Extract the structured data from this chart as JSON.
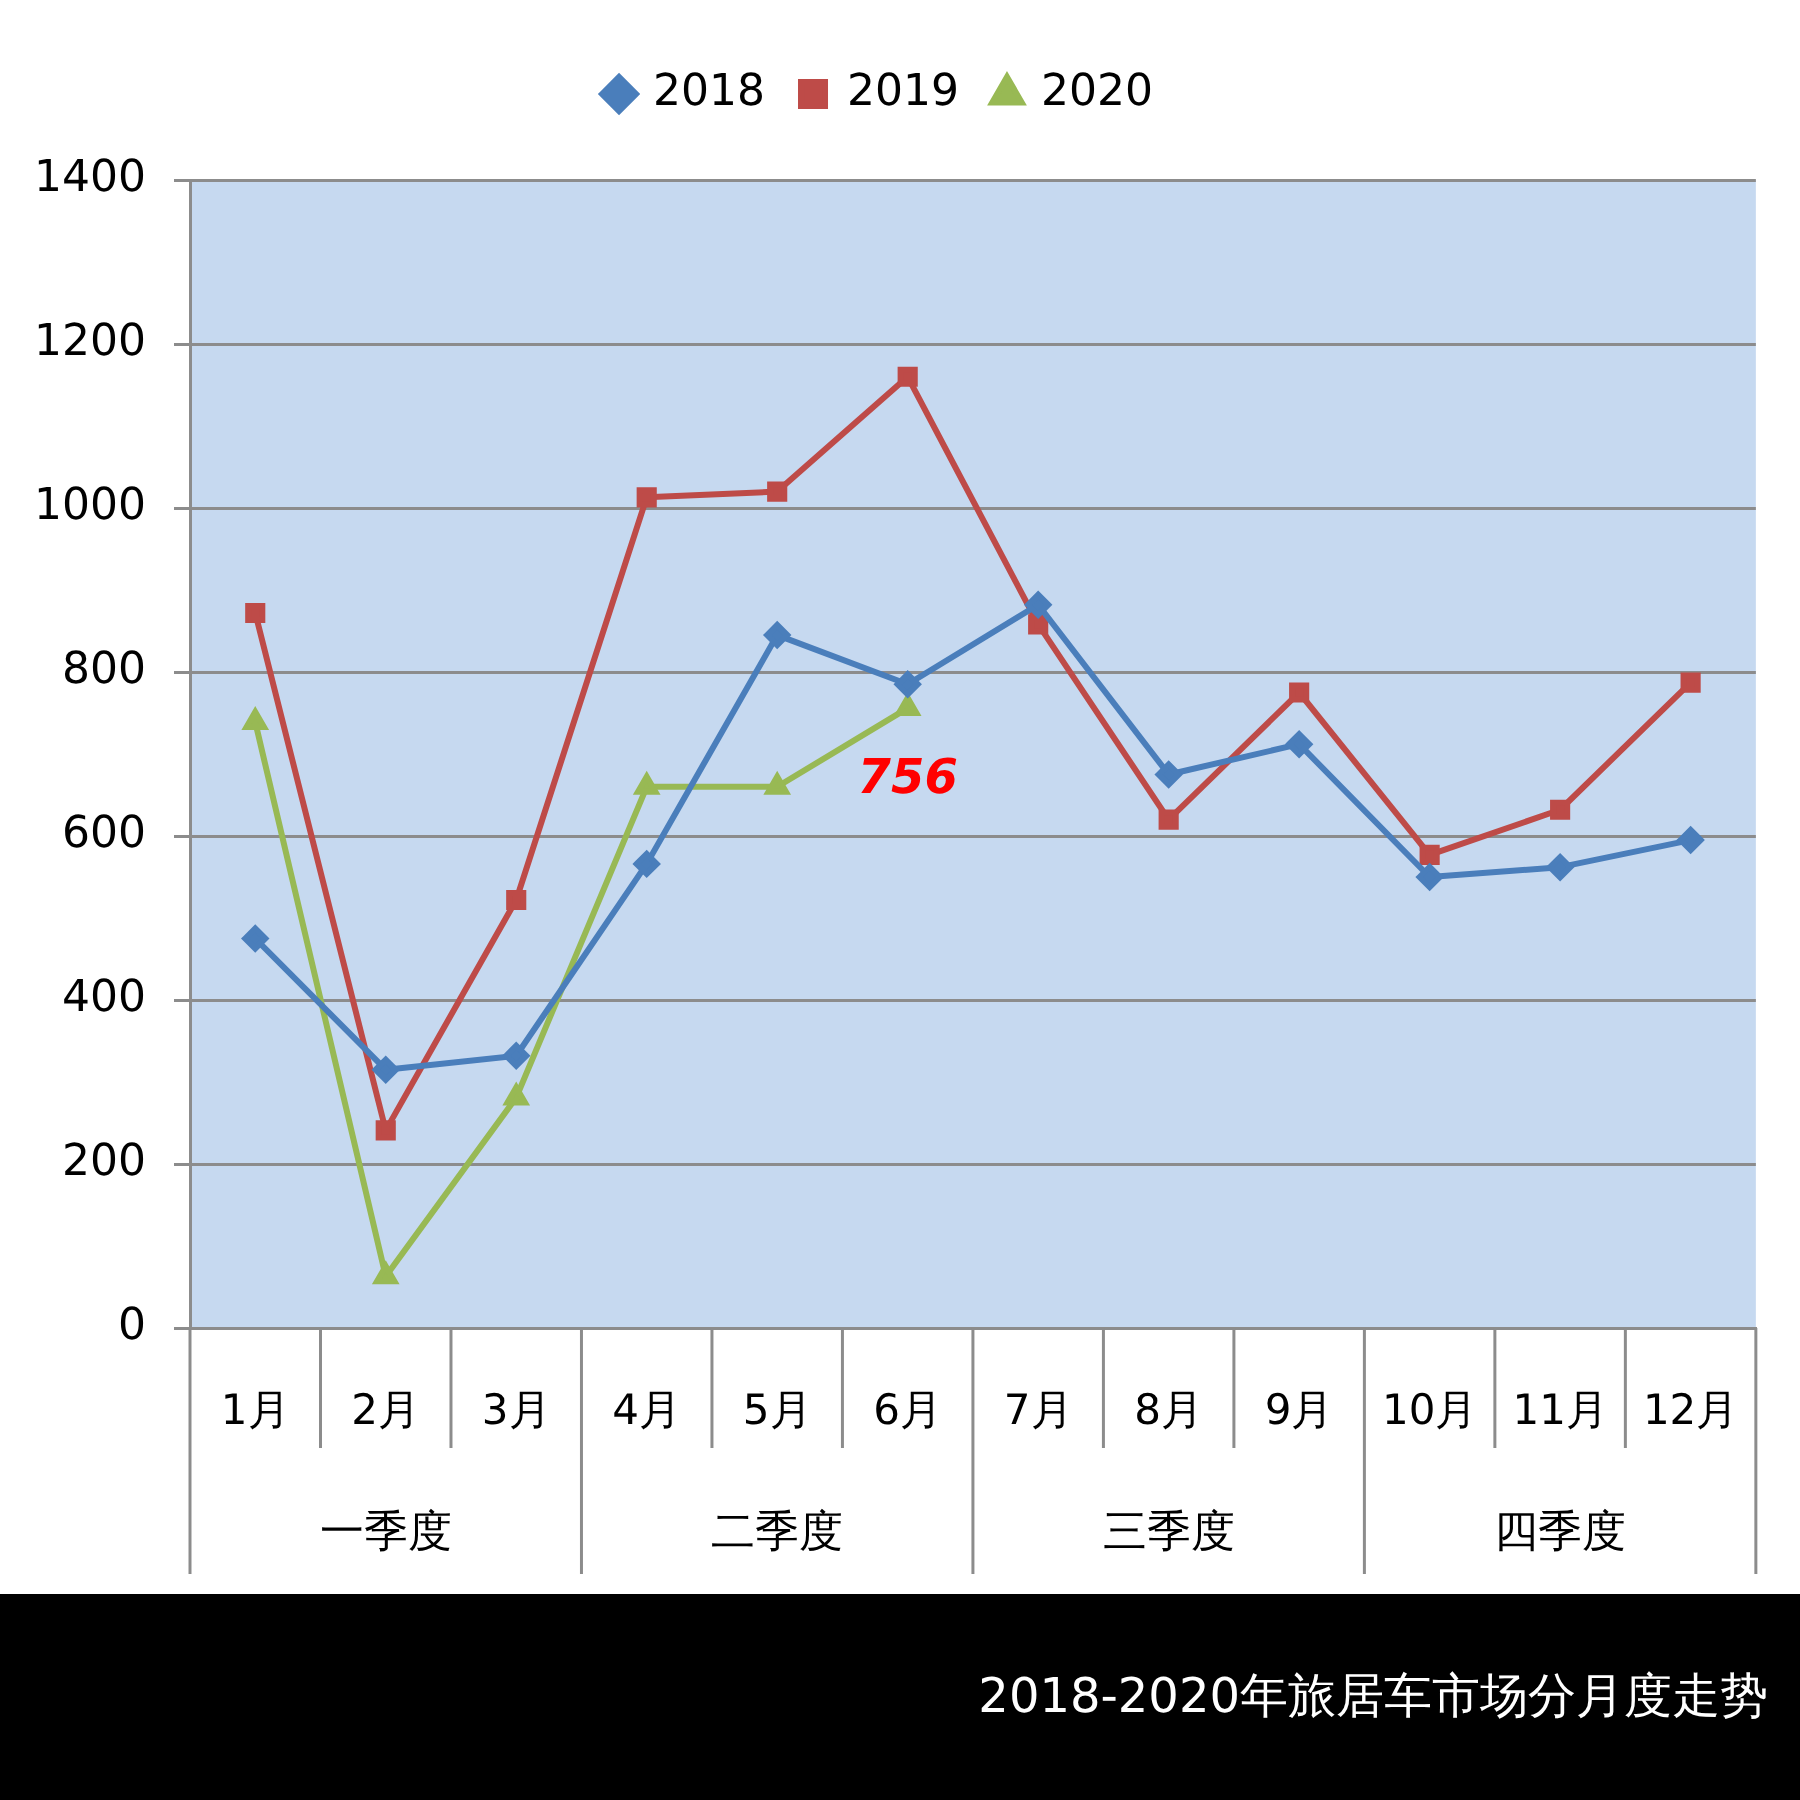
{
  "chart_data": {
    "type": "line",
    "title": "2018-2020年旅居车市场分月度走势",
    "categories": [
      "1月",
      "2月",
      "3月",
      "4月",
      "5月",
      "6月",
      "7月",
      "8月",
      "9月",
      "10月",
      "11月",
      "12月"
    ],
    "annotations": [
      "一季度",
      "二季度",
      "三季度",
      "四季度"
    ],
    "series": [
      {
        "name": "2018",
        "color": "#4a7ebb",
        "marker": "diamond",
        "values": [
          475,
          315,
          332,
          566,
          845,
          785,
          882,
          675,
          712,
          550,
          562,
          595
        ]
      },
      {
        "name": "2019",
        "color": "#be4b48",
        "marker": "square",
        "values": [
          872,
          241,
          522,
          1013,
          1020,
          1160,
          858,
          620,
          775,
          577,
          632,
          787
        ]
      },
      {
        "name": "2020",
        "color": "#98b954",
        "marker": "triangle",
        "values": [
          739,
          63,
          281,
          660,
          660,
          756,
          null,
          null,
          null,
          null,
          null,
          null
        ],
        "value_labels": [
          null,
          null,
          null,
          null,
          null,
          "756",
          null,
          null,
          null,
          null,
          null,
          null
        ]
      }
    ],
    "ylim": [
      0,
      1400
    ],
    "yticks": [
      0,
      200,
      400,
      600,
      800,
      1000,
      1200,
      1400
    ],
    "grid": "y",
    "legend": "top",
    "line_style": "solid"
  }
}
